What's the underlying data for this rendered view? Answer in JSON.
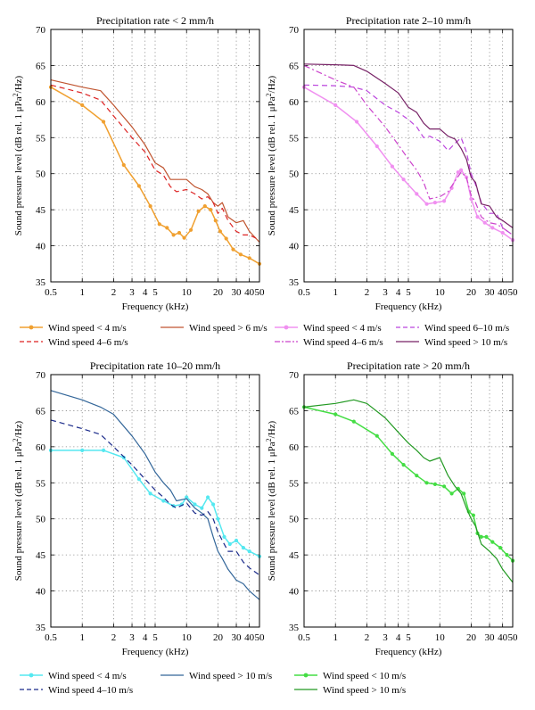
{
  "chart_data": [
    {
      "type": "line",
      "title": "Precipitation rate < 2 mm/h",
      "xlabel": "Frequency (kHz)",
      "ylabel": "Sound pressure level (dB rel. 1 μPa²/Hz)",
      "xscale": "log",
      "xlim": [
        0.5,
        50
      ],
      "ylim": [
        35,
        70
      ],
      "xticks": [
        "0.5",
        "1",
        "2",
        "3",
        "4",
        "5",
        "10",
        "20",
        "30",
        "40",
        "50"
      ],
      "yticks": [
        "35",
        "40",
        "45",
        "50",
        "55",
        "60",
        "65",
        "70"
      ],
      "grid": true,
      "legend": "below",
      "series": [
        {
          "name": "Wind speed < 4 m/s",
          "color": "#f0a030",
          "style": "solid-markers",
          "x": [
            0.5,
            1,
            1.6,
            2.5,
            3.5,
            4.5,
            5.5,
            6.5,
            7.5,
            8.5,
            9.5,
            11,
            13,
            15,
            17,
            19,
            21,
            24,
            28,
            33,
            40,
            50
          ],
          "y": [
            62,
            59.5,
            57.2,
            51.2,
            48.3,
            45.5,
            43,
            42.5,
            41.5,
            41.8,
            41.1,
            42.2,
            44.8,
            45.5,
            45,
            43.5,
            42,
            41,
            39.5,
            38.8,
            38.3,
            37.5
          ]
        },
        {
          "name": "Wind speed > 6 m/s",
          "color": "#c05530",
          "style": "solid",
          "x": [
            0.5,
            1,
            1.5,
            2,
            3,
            4,
            5,
            6,
            7,
            8,
            10,
            12,
            14,
            16,
            18,
            20,
            22,
            25,
            30,
            35,
            40,
            50
          ],
          "y": [
            63,
            62,
            61.5,
            59.5,
            56.5,
            54,
            51.5,
            50.8,
            49.2,
            49.2,
            49.2,
            48.2,
            47.8,
            47.2,
            46,
            45.5,
            46,
            44,
            43.2,
            43.5,
            42,
            40.5
          ]
        },
        {
          "name": "Wind speed 4–6 m/s",
          "color": "#dd2222",
          "style": "dashed",
          "x": [
            0.5,
            1,
            1.5,
            2,
            3,
            4,
            5,
            6,
            7,
            8,
            10,
            12,
            14,
            16,
            18,
            20,
            22,
            25,
            30,
            35,
            40,
            50
          ],
          "y": [
            62.3,
            61.2,
            60.2,
            58,
            55,
            53,
            50.5,
            49.8,
            48.2,
            47.5,
            47.8,
            47.2,
            46.5,
            46.8,
            46,
            44.5,
            45.2,
            43.5,
            42,
            41.5,
            41.5,
            40.8
          ]
        }
      ]
    },
    {
      "type": "line",
      "title": "Precipitation rate 2–10 mm/h",
      "xlabel": "Frequency (kHz)",
      "ylabel": "Sound pressure level (dB rel. 1 μPa²/Hz)",
      "xscale": "log",
      "xlim": [
        0.5,
        50
      ],
      "ylim": [
        35,
        70
      ],
      "xticks": [
        "0.5",
        "1",
        "2",
        "3",
        "4",
        "5",
        "10",
        "20",
        "30",
        "40",
        "50"
      ],
      "yticks": [
        "35",
        "40",
        "45",
        "50",
        "55",
        "60",
        "65",
        "70"
      ],
      "grid": true,
      "legend": "below",
      "series": [
        {
          "name": "Wind speed < 4 m/s",
          "color": "#f090f0",
          "style": "solid-markers",
          "x": [
            0.5,
            1,
            1.6,
            2.5,
            3.5,
            4.5,
            6,
            7.5,
            9,
            11,
            13,
            15,
            16,
            18,
            20,
            23,
            27,
            32,
            40,
            50
          ],
          "y": [
            62,
            59.5,
            57.2,
            53.8,
            51,
            49.2,
            47.2,
            45.8,
            46,
            46.2,
            48,
            50.2,
            50.5,
            49.5,
            46.5,
            44,
            43.2,
            42.5,
            41.8,
            40.8
          ]
        },
        {
          "name": "Wind speed 6–10 m/s",
          "color": "#bb44dd",
          "style": "dashed",
          "x": [
            0.5,
            1,
            1.5,
            2,
            3,
            4,
            5,
            6,
            7,
            8,
            10,
            12,
            14,
            16,
            18,
            20,
            22,
            25,
            30,
            35,
            40,
            50
          ],
          "y": [
            62.3,
            62.2,
            62,
            61.5,
            59.5,
            58.5,
            57.5,
            56.5,
            55,
            55.2,
            54.5,
            53.2,
            54.2,
            55,
            53,
            50,
            48.5,
            46,
            44.5,
            44.5,
            42.5,
            41.5
          ]
        },
        {
          "name": "Wind speed 4–6 m/s",
          "color": "#cc44cc",
          "style": "dashdot",
          "x": [
            0.5,
            1,
            1.5,
            2,
            3,
            4,
            5,
            6,
            7,
            8,
            10,
            12,
            14,
            16,
            18,
            20,
            22,
            25,
            30,
            35,
            40,
            50
          ],
          "y": [
            65,
            63,
            62,
            59.5,
            56.5,
            54,
            52,
            50.5,
            48.8,
            46.5,
            46.8,
            47.5,
            49,
            50.2,
            49.5,
            47,
            46,
            44,
            43.2,
            43,
            42.5,
            41.5
          ]
        },
        {
          "name": "Wind speed > 10 m/s",
          "color": "#772266",
          "style": "solid",
          "x": [
            0.5,
            1,
            1.5,
            2,
            3,
            4,
            5,
            6,
            7,
            8,
            10,
            12,
            14,
            16,
            18,
            20,
            22,
            25,
            30,
            35,
            40,
            50
          ],
          "y": [
            65.2,
            65.1,
            65,
            64.2,
            62.5,
            61.2,
            59.2,
            58.5,
            57,
            56.2,
            56.2,
            55.2,
            54.8,
            53.5,
            52,
            49.5,
            48.8,
            45.8,
            45.5,
            44,
            43.5,
            42.5
          ]
        }
      ]
    },
    {
      "type": "line",
      "title": "Precipitation rate 10–20 mm/h",
      "xlabel": "Frequency (kHz)",
      "ylabel": "Sound pressure level (dB rel. 1 μPa²/Hz)",
      "xscale": "log",
      "xlim": [
        0.5,
        50
      ],
      "ylim": [
        35,
        70
      ],
      "xticks": [
        "0.5",
        "1",
        "2",
        "3",
        "4",
        "5",
        "10",
        "20",
        "30",
        "40",
        "50"
      ],
      "yticks": [
        "35",
        "40",
        "45",
        "50",
        "55",
        "60",
        "65",
        "70"
      ],
      "grid": true,
      "legend": "below",
      "series": [
        {
          "name": "Wind speed < 4 m/s",
          "color": "#55e8f0",
          "style": "solid-markers",
          "x": [
            0.5,
            1,
            1.6,
            2.5,
            3.5,
            4.5,
            6,
            7.5,
            9,
            10,
            12,
            14,
            16,
            18,
            20,
            23,
            26,
            30,
            35,
            40,
            50
          ],
          "y": [
            59.5,
            59.5,
            59.5,
            58.5,
            55.5,
            53.5,
            52.5,
            51.8,
            52,
            53,
            52,
            51.5,
            53,
            52,
            50,
            47.5,
            46.5,
            47,
            46,
            45.5,
            44.8
          ]
        },
        {
          "name": "Wind speed > 10 m/s",
          "color": "#336699",
          "style": "solid",
          "x": [
            0.5,
            1,
            1.5,
            2,
            3,
            4,
            5,
            6,
            7,
            8,
            10,
            12,
            14,
            16,
            18,
            20,
            22,
            25,
            30,
            35,
            40,
            50
          ],
          "y": [
            67.8,
            66.5,
            65.5,
            64.5,
            61.5,
            59,
            56.5,
            55,
            54,
            52.5,
            52.8,
            51.5,
            50.8,
            50,
            47.5,
            45.5,
            44.5,
            43,
            41.5,
            41,
            40,
            38.8
          ]
        },
        {
          "name": "Wind speed 4–10 m/s",
          "color": "#1a2a8a",
          "style": "dashed",
          "x": [
            0.5,
            1,
            1.5,
            2,
            3,
            4,
            5,
            6,
            7,
            8,
            10,
            12,
            14,
            16,
            18,
            20,
            22,
            25,
            30,
            35,
            40,
            50
          ],
          "y": [
            63.7,
            62.5,
            61.7,
            60,
            57.5,
            55.5,
            54,
            53,
            52,
            51.5,
            52.2,
            50.8,
            50.5,
            51,
            50,
            48.2,
            47,
            45.5,
            45.5,
            44,
            43.2,
            42.2
          ]
        }
      ]
    },
    {
      "type": "line",
      "title": "Precipitation rate > 20 mm/h",
      "xlabel": "Frequency (kHz)",
      "ylabel": "Sound pressure level (dB rel. 1 μPa²/Hz)",
      "xscale": "log",
      "xlim": [
        0.5,
        50
      ],
      "ylim": [
        35,
        70
      ],
      "xticks": [
        "0.5",
        "1",
        "2",
        "3",
        "4",
        "5",
        "10",
        "20",
        "30",
        "40",
        "50"
      ],
      "yticks": [
        "35",
        "40",
        "45",
        "50",
        "55",
        "60",
        "65",
        "70"
      ],
      "grid": true,
      "legend": "below",
      "series": [
        {
          "name": "Wind speed < 10 m/s",
          "color": "#44dd44",
          "style": "solid-markers",
          "x": [
            0.5,
            1,
            1.5,
            2.5,
            3.5,
            4.5,
            6,
            7.5,
            9,
            11,
            13,
            15,
            17,
            19,
            21,
            23,
            25,
            28,
            32,
            38,
            44,
            50
          ],
          "y": [
            65.5,
            64.5,
            63.5,
            61.5,
            59,
            57.5,
            56,
            55,
            54.8,
            54.5,
            53.5,
            54.2,
            53.5,
            51,
            50.5,
            48,
            47.5,
            47.5,
            46.8,
            46,
            45,
            44.2
          ]
        },
        {
          "name": "Wind speed > 10 m/s",
          "color": "#229922",
          "style": "solid",
          "x": [
            0.5,
            1,
            1.5,
            2,
            3,
            4,
            5,
            6,
            7,
            8,
            10,
            12,
            14,
            16,
            18,
            20,
            22,
            25,
            30,
            35,
            40,
            50
          ],
          "y": [
            65.5,
            66,
            66.5,
            66,
            64,
            62,
            60.5,
            59.5,
            58.5,
            58,
            58.5,
            56,
            54.5,
            53.5,
            51.5,
            50,
            49,
            46.5,
            45.5,
            44.5,
            43,
            41.2
          ]
        }
      ]
    }
  ]
}
